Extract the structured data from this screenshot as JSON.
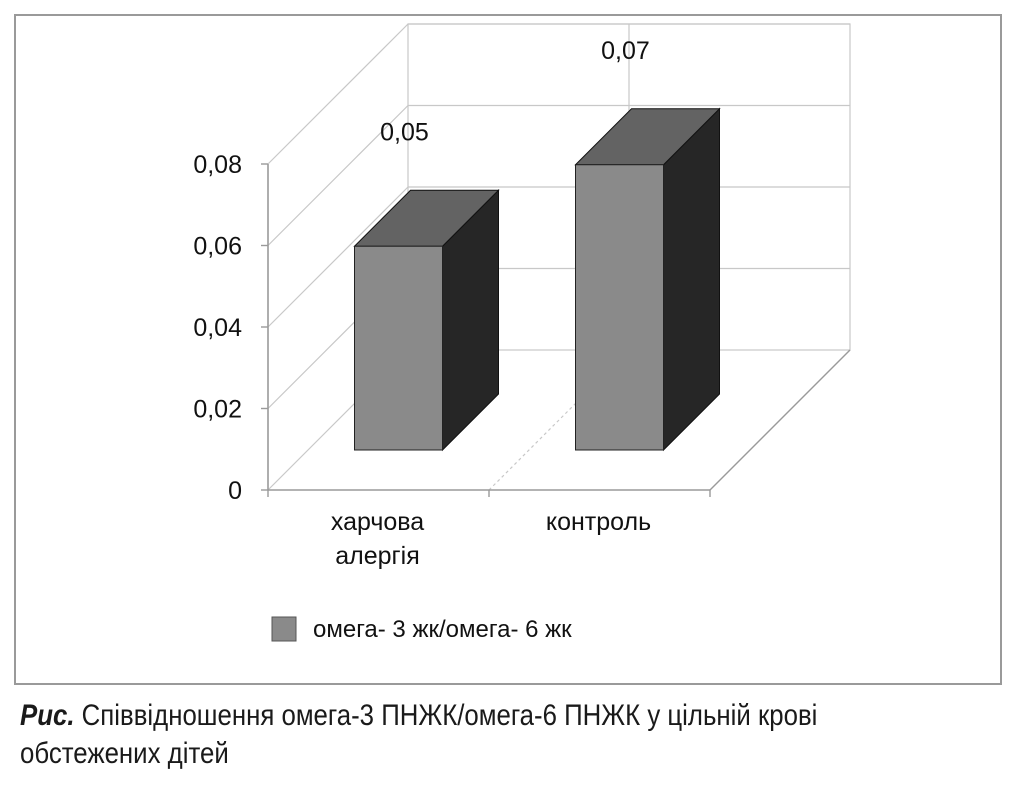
{
  "chart_data": {
    "type": "bar",
    "title": "",
    "xlabel": "",
    "ylabel": "",
    "categories": [
      "харчова\nалергія",
      "контроль"
    ],
    "series": [
      {
        "name": "омега- 3 жк/омега- 6 жк",
        "values": [
          0.05,
          0.07
        ]
      }
    ],
    "data_labels": [
      "0,05",
      "0,07"
    ],
    "ylim": [
      0,
      0.08
    ],
    "yticks": [
      "0",
      "0,02",
      "0,04",
      "0,06",
      "0,08"
    ],
    "grid": true,
    "three_d": true,
    "legend": "bottom"
  },
  "colors": {
    "bar_front": "#8a8a8a",
    "bar_top": "#636363",
    "bar_side": "#262626",
    "grid": "#c8c8c8",
    "axis": "#9a9a9a"
  },
  "caption": {
    "prefix": "Рис.",
    "text": " Співвідношення омега-3 ПНЖК/омега-6 ПНЖК у цільній крові обстежених дітей"
  }
}
